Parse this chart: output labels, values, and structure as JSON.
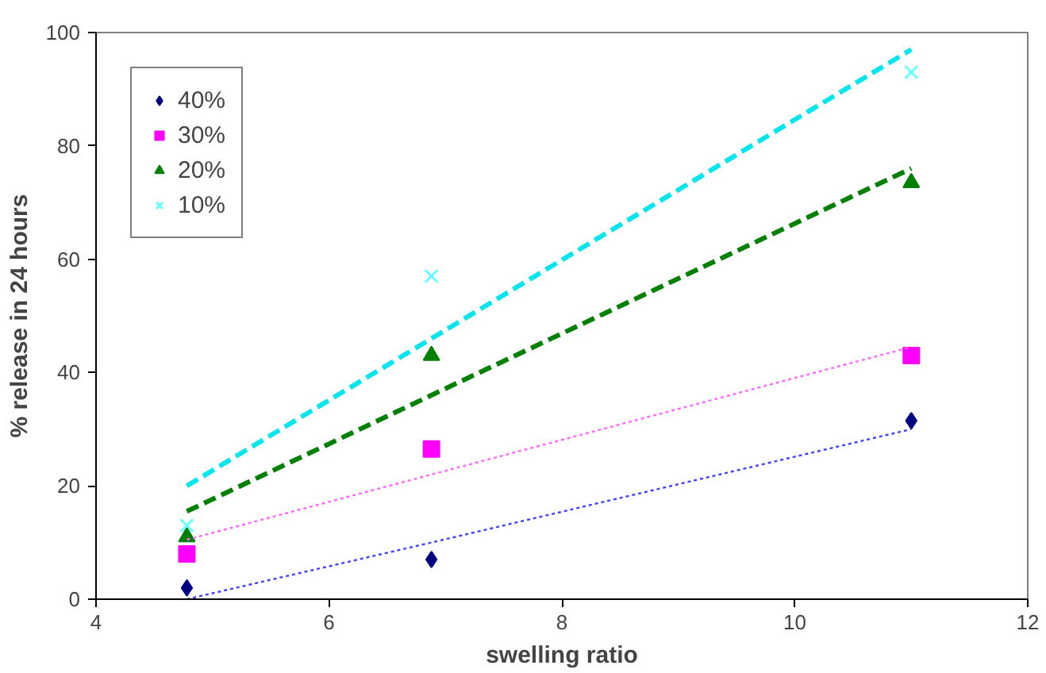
{
  "chart_data": {
    "type": "scatter",
    "xlabel": "swelling ratio",
    "ylabel": "% release in 24 hours",
    "xlim": [
      4,
      12
    ],
    "xticks": [
      4,
      6,
      8,
      10,
      12
    ],
    "ylim": [
      0,
      100
    ],
    "yticks": [
      0,
      20,
      40,
      60,
      80,
      100
    ],
    "grid": false,
    "legend": "top left",
    "x": [
      4.78,
      6.88,
      11.0
    ],
    "series": [
      {
        "name": "40%",
        "color": "#000080",
        "marker": "diamond",
        "values": [
          2,
          7,
          31.5
        ]
      },
      {
        "name": "30%",
        "color": "#ff00ff",
        "marker": "square",
        "values": [
          8,
          26.5,
          43
        ]
      },
      {
        "name": "20%",
        "color": "#008000",
        "marker": "triangle",
        "values": [
          11,
          43,
          73.5
        ]
      },
      {
        "name": "10%",
        "color": "#66ffff",
        "marker": "cross",
        "values": [
          13,
          57,
          93
        ]
      },
      {
        "type": "line",
        "color": "#4040ff",
        "line_style": "dotted",
        "values": [
          0,
          10,
          30
        ]
      },
      {
        "type": "line",
        "color": "#ff66ff",
        "line_style": "dotted",
        "values": [
          10.5,
          22,
          44.5
        ]
      },
      {
        "type": "line",
        "color": "#008000",
        "line_style": "dashed",
        "values": [
          15.5,
          36,
          76
        ]
      },
      {
        "type": "line",
        "color": "#00e5ee",
        "line_style": "dashed",
        "values": [
          20,
          46,
          97
        ]
      }
    ]
  }
}
